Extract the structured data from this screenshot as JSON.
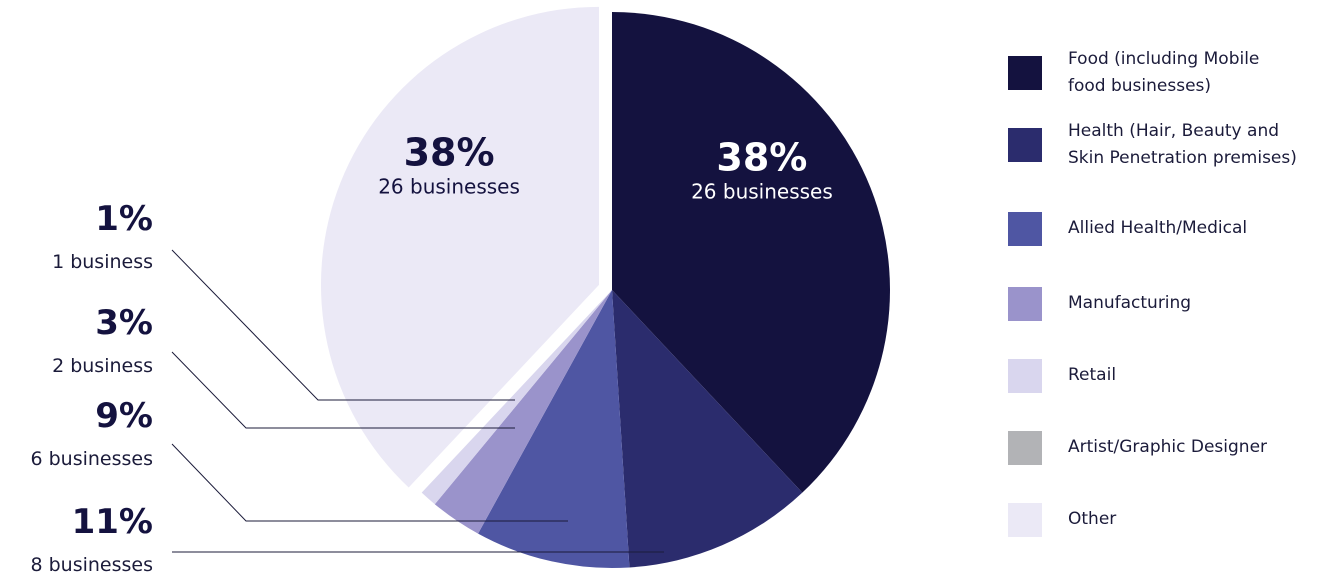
{
  "chart_data": {
    "type": "pie",
    "slices": [
      {
        "label": "Food (including Mobile food businesses)",
        "value": 38,
        "color": "#14123f"
      },
      {
        "label": "Health (Hair, Beauty and Skin Penetration premises)",
        "value": 11,
        "color": "#2b2c6d"
      },
      {
        "label": "Allied Health/Medical",
        "value": 9,
        "color": "#4f56a3"
      },
      {
        "label": "Manufacturing",
        "value": 3,
        "color": "#9a93cb"
      },
      {
        "label": "Retail",
        "value": 1,
        "color": "#d9d6ee"
      },
      {
        "label": "Other",
        "value": 38,
        "color": "#ebe9f6",
        "exploded": true
      }
    ],
    "inner_labels": [
      {
        "percent": "38%",
        "count": "26 businesses",
        "slice": 0
      },
      {
        "percent": "38%",
        "count": "26 businesses",
        "slice": 5
      }
    ],
    "callouts": [
      {
        "percent": "1%",
        "count": "1 business"
      },
      {
        "percent": "3%",
        "count": "2 business"
      },
      {
        "percent": "9%",
        "count": "6 businesses"
      },
      {
        "percent": "11%",
        "count": "8 businesses"
      }
    ],
    "legend": [
      {
        "label": "Food (including Mobile food businesses)",
        "lines": [
          "Food (including Mobile",
          "food businesses)"
        ],
        "color": "#14123f"
      },
      {
        "label": "Health (Hair, Beauty and Skin Penetration premises)",
        "lines": [
          "Health (Hair, Beauty and",
          "Skin Penetration premises)"
        ],
        "color": "#2b2c6d"
      },
      {
        "label": "Allied Health/Medical",
        "lines": [
          "Allied Health/Medical"
        ],
        "color": "#4f56a3"
      },
      {
        "label": "Manufacturing",
        "lines": [
          "Manufacturing"
        ],
        "color": "#9a93cb"
      },
      {
        "label": "Retail",
        "lines": [
          "Retail"
        ],
        "color": "#d9d6ee"
      },
      {
        "label": "Artist/Graphic Designer",
        "lines": [
          "Artist/Graphic Designer"
        ],
        "color": "#b2b3b6"
      },
      {
        "label": "Other",
        "lines": [
          "Other"
        ],
        "color": "#ebe9f6"
      }
    ],
    "legend_position": "right"
  }
}
